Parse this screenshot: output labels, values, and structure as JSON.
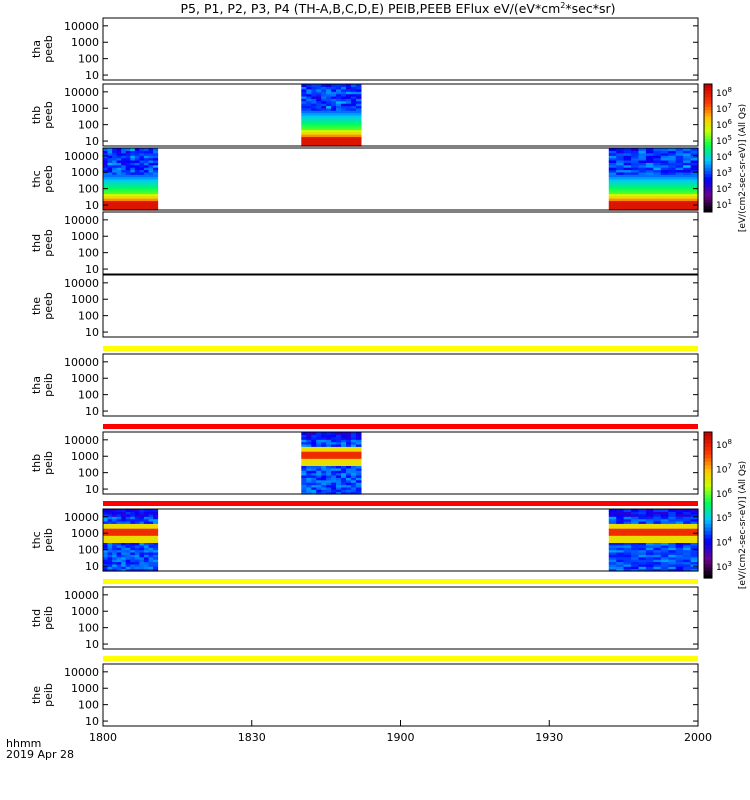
{
  "title": "P5, P1, P2, P3, P4 (TH-A,B,C,D,E) PEIB,PEEB EFlux eV/(eV*cm",
  "title_sup": "2",
  "title_end": "*sec*sr)",
  "footer": {
    "label1": "hhmm",
    "label2": "2019 Apr 28"
  },
  "colors": {
    "background": "#ffffff",
    "frame": "#000000",
    "yellow_band": "#ffff00",
    "red_band": "#ff0000"
  },
  "colorbars": {
    "electron": {
      "label": "[eV/(cm2-sec-sr-eV)] (All Qs)",
      "ticks": [
        "10",
        "10",
        "10",
        "10",
        "10",
        "10",
        "10",
        "10"
      ],
      "exponents": [
        "1",
        "2",
        "3",
        "4",
        "5",
        "6",
        "7",
        "8"
      ]
    },
    "ion": {
      "label": "[eV/(cm2-sec-sr-eV)] (All Qs)",
      "ticks": [
        "10",
        "10",
        "10",
        "10",
        "10",
        "10"
      ],
      "exponents": [
        "3",
        "4",
        "5",
        "6",
        "7",
        "8"
      ]
    }
  },
  "chart_data": {
    "type": "heatmap",
    "x_axis": {
      "ticks": [
        "1800",
        "1830",
        "1900",
        "1930",
        "2000"
      ],
      "range": [
        "18:00",
        "20:00"
      ]
    },
    "y_axis": {
      "scale": "log",
      "ticks": [
        "10",
        "100",
        "1000",
        "10000"
      ],
      "range_eV": [
        5,
        30000
      ]
    },
    "panels": [
      {
        "probe": "tha",
        "instrument": "peeb",
        "label1": "tha",
        "label2": "peeb",
        "kind": "electron",
        "blocks": [],
        "band_above": null
      },
      {
        "probe": "thb",
        "instrument": "peeb",
        "label1": "thb",
        "label2": "peeb",
        "kind": "electron",
        "blocks": [
          {
            "start": "18:40",
            "end": "18:52"
          }
        ],
        "band_above": null
      },
      {
        "probe": "thc",
        "instrument": "peeb",
        "label1": "thc",
        "label2": "peeb",
        "kind": "electron",
        "blocks": [
          {
            "start": "18:00",
            "end": "18:11"
          },
          {
            "start": "19:42",
            "end": "20:00"
          }
        ],
        "band_above": null
      },
      {
        "probe": "thd",
        "instrument": "peeb",
        "label1": "thd",
        "label2": "peeb",
        "kind": "electron",
        "blocks": [],
        "band_above": null
      },
      {
        "probe": "the",
        "instrument": "peeb",
        "label1": "the",
        "label2": "peeb",
        "kind": "electron",
        "blocks": [],
        "band_above": null
      },
      {
        "probe": "tha",
        "instrument": "peib",
        "label1": "tha",
        "label2": "peib",
        "kind": "ion",
        "blocks": [],
        "band_above": "yellow"
      },
      {
        "probe": "thb",
        "instrument": "peib",
        "label1": "thb",
        "label2": "peib",
        "kind": "ion",
        "blocks": [
          {
            "start": "18:40",
            "end": "18:52"
          }
        ],
        "band_above": "red"
      },
      {
        "probe": "thc",
        "instrument": "peib",
        "label1": "thc",
        "label2": "peib",
        "kind": "ion",
        "blocks": [
          {
            "start": "18:00",
            "end": "18:11"
          },
          {
            "start": "19:42",
            "end": "20:00"
          }
        ],
        "band_above": "red"
      },
      {
        "probe": "thd",
        "instrument": "peib",
        "label1": "thd",
        "label2": "peib",
        "kind": "ion",
        "blocks": [],
        "band_above": "yellow"
      },
      {
        "probe": "the",
        "instrument": "peib",
        "label1": "the",
        "label2": "peib",
        "kind": "ion",
        "blocks": [],
        "band_above": "yellow"
      }
    ]
  }
}
